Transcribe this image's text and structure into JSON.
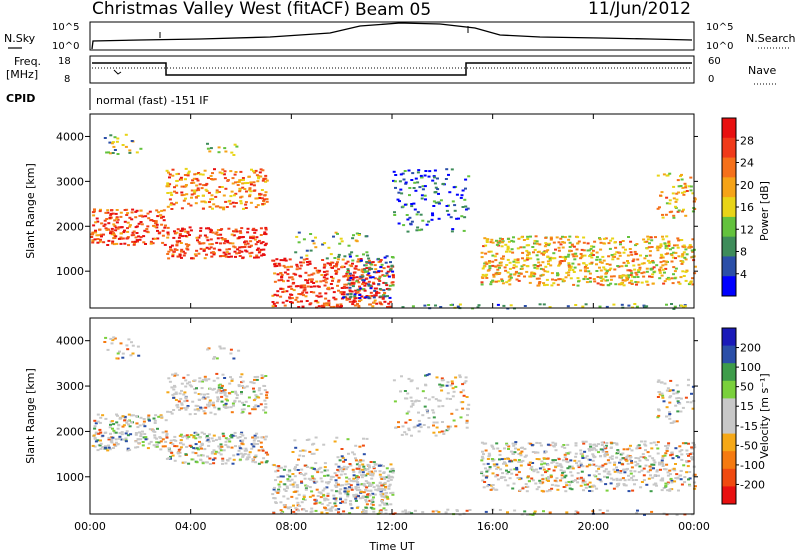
{
  "header": {
    "station": "Christmas Valley West (fitACF)",
    "beam": "Beam 05",
    "date": "11/Jun/2012"
  },
  "top_panels": {
    "nsky_label": "N.Sky",
    "nsearch_label": "N.Search",
    "freq_label_1": "Freq.",
    "freq_label_2": "[MHz]",
    "nave_label": "Nave",
    "cpid_label": "CPID",
    "noise_left_ticks": [
      "10^5",
      "10^0"
    ],
    "noise_right_ticks": [
      "10^5",
      "10^0"
    ],
    "freq_left_ticks": [
      "18",
      "8"
    ],
    "freq_right_ticks": [
      "60",
      "0"
    ],
    "cpid_text": "normal (fast) -151 IF"
  },
  "colors": {
    "power_scale": [
      "#0000ff",
      "#2b4fa8",
      "#3e8c5a",
      "#63c23d",
      "#e8d417",
      "#f5a317",
      "#f5701a",
      "#f03a1a",
      "#e81010"
    ],
    "velocity_scale": [
      "#e81010",
      "#f04a10",
      "#f57a10",
      "#f5a817",
      "#c8c8c8",
      "#c8c8c8",
      "#7ad03c",
      "#3e9c4a",
      "#2b4fa8",
      "#1a1ab8"
    ]
  },
  "chart_data": [
    {
      "type": "heatmap",
      "quantity": "Power",
      "ylabel": "Slant Range [km]",
      "xlabel": "",
      "x_ticks": [
        "00:00",
        "04:00",
        "08:00",
        "12:00",
        "16:00",
        "20:00",
        "00:00"
      ],
      "y_ticks": [
        1000,
        2000,
        3000,
        4000
      ],
      "ylim": [
        180,
        4500
      ],
      "xlim_hours": [
        0,
        24
      ],
      "colorbar_label": "Power [dB]",
      "colorbar_ticks": [
        "4",
        "8",
        "12",
        "16",
        "20",
        "24",
        "28"
      ]
    },
    {
      "type": "heatmap",
      "quantity": "Velocity",
      "ylabel": "Slant Range [km]",
      "xlabel": "Time UT",
      "x_ticks": [
        "00:00",
        "04:00",
        "08:00",
        "12:00",
        "16:00",
        "20:00",
        "00:00"
      ],
      "y_ticks": [
        1000,
        2000,
        3000,
        4000
      ],
      "ylim": [
        180,
        4500
      ],
      "xlim_hours": [
        0,
        24
      ],
      "colorbar_label": "Velocity [m s⁻¹]",
      "colorbar_ticks": [
        "200",
        "100",
        "50",
        "15",
        "-15",
        "-50",
        "-100",
        "-200"
      ]
    }
  ]
}
